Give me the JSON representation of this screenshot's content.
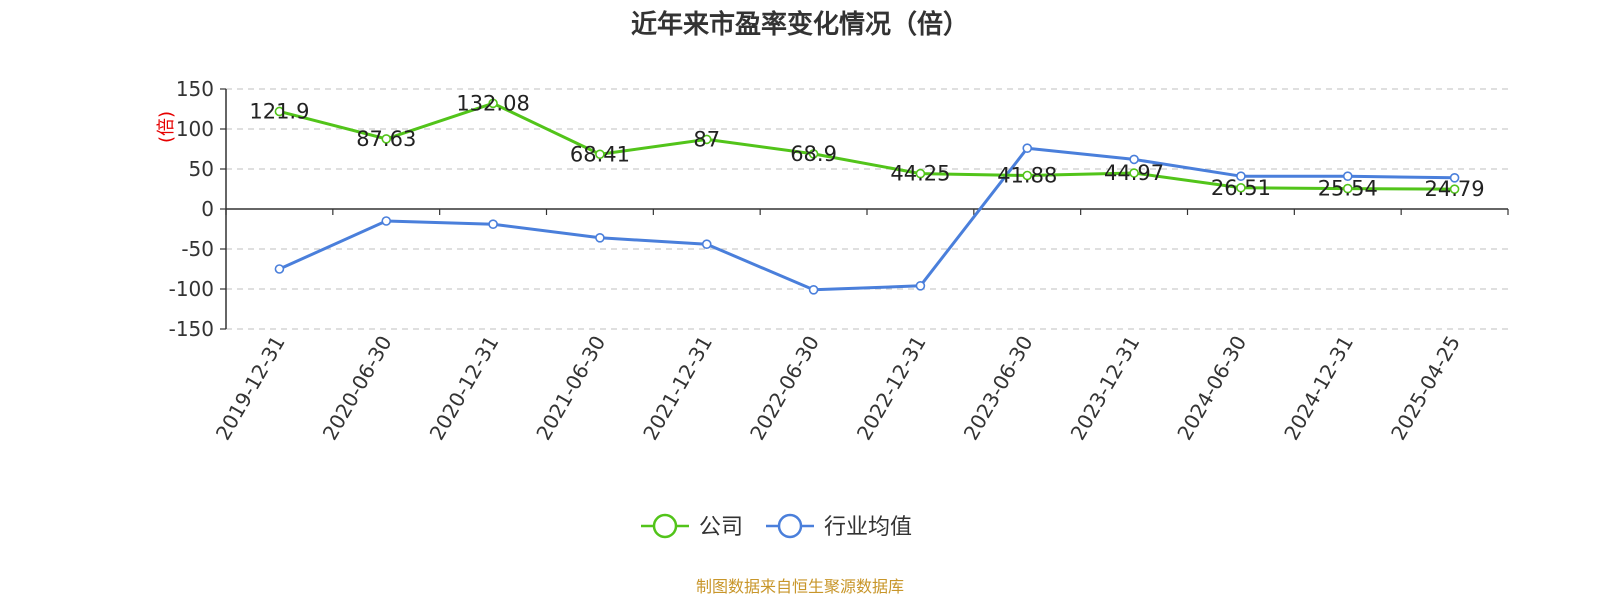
{
  "chart_data": {
    "type": "line",
    "title": "近年来市盈率变化情况（倍）",
    "ylabel": "(倍)",
    "xlabel": "",
    "categories": [
      "2019-12-31",
      "2020-06-30",
      "2020-12-31",
      "2021-06-30",
      "2021-12-31",
      "2022-06-30",
      "2022-12-31",
      "2023-06-30",
      "2023-12-31",
      "2024-06-30",
      "2024-12-31",
      "2025-04-25"
    ],
    "ylim": [
      -150,
      150
    ],
    "yticks": [
      150,
      100,
      50,
      0,
      -50,
      -100,
      -150
    ],
    "grid": true,
    "legend_position": "bottom",
    "series": [
      {
        "name": "公司",
        "color": "#52c41a",
        "values": [
          121.9,
          87.63,
          132.08,
          68.41,
          87,
          68.9,
          44.25,
          41.88,
          44.97,
          26.51,
          25.54,
          24.79
        ],
        "labels": [
          "121.9",
          "87.63",
          "132.08",
          "68.41",
          "87",
          "68.9",
          "44.25",
          "41.88",
          "44.97",
          "26.51",
          "25.54",
          "24.79"
        ]
      },
      {
        "name": "行业均值",
        "color": "#4a7fdb",
        "values": [
          -75,
          -15,
          -19,
          -36,
          -44,
          -101,
          -96,
          76,
          62,
          41,
          41,
          39
        ]
      }
    ]
  },
  "source": "制图数据来自恒生聚源数据库"
}
